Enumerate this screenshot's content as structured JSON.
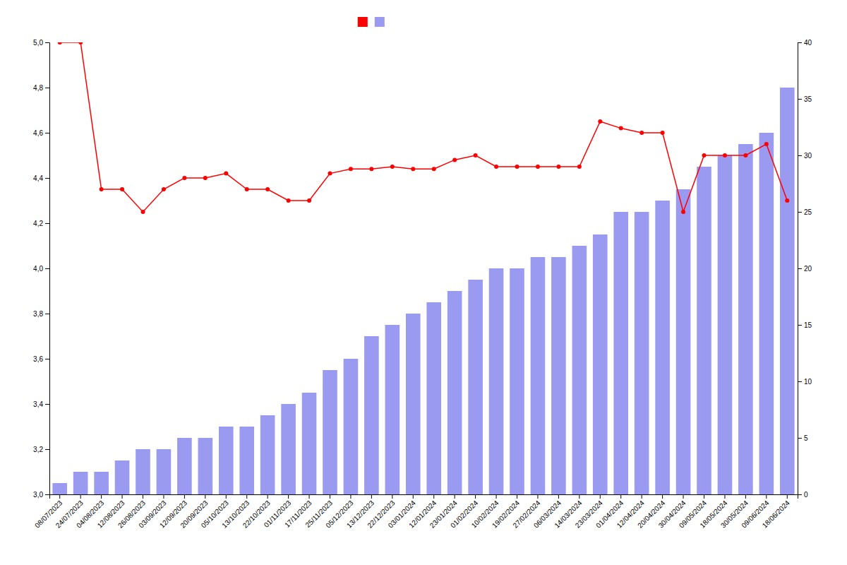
{
  "chart_data": {
    "type": "bar",
    "categories": [
      "08/07/2023",
      "24/07/2023",
      "04/08/2023",
      "12/08/2023",
      "26/08/2023",
      "03/09/2023",
      "12/09/2023",
      "20/09/2023",
      "05/10/2023",
      "13/10/2023",
      "22/10/2023",
      "01/11/2023",
      "17/11/2023",
      "25/11/2023",
      "05/12/2023",
      "13/12/2023",
      "22/12/2023",
      "03/01/2024",
      "12/01/2024",
      "23/01/2024",
      "01/02/2024",
      "10/02/2024",
      "19/02/2024",
      "27/02/2024",
      "06/03/2024",
      "14/03/2024",
      "23/03/2024",
      "01/04/2024",
      "12/04/2024",
      "20/04/2024",
      "30/04/2024",
      "09/05/2024",
      "18/05/2024",
      "30/05/2024",
      "09/06/2024",
      "18/06/2024"
    ],
    "series": [
      {
        "type": "line",
        "color": "#FF0000",
        "marker": "circle",
        "values": [
          5.0,
          5.0,
          4.35,
          4.35,
          4.25,
          4.35,
          4.4,
          4.4,
          4.42,
          4.35,
          4.35,
          4.3,
          4.3,
          4.42,
          4.44,
          4.44,
          4.45,
          4.44,
          4.44,
          4.48,
          4.5,
          4.45,
          4.45,
          4.45,
          4.45,
          4.45,
          4.65,
          4.62,
          4.6,
          4.6,
          4.25,
          4.5,
          4.5,
          4.5,
          4.55,
          4.3
        ]
      },
      {
        "type": "bar",
        "axis": "y2",
        "color": "#8888EE",
        "values": [
          1,
          2,
          2,
          3,
          4,
          4,
          5,
          5,
          6,
          6,
          7,
          8,
          9,
          11,
          12,
          14,
          15,
          16,
          17,
          18,
          19,
          20,
          20,
          21,
          21,
          22,
          23,
          25,
          25,
          26,
          27,
          29,
          30,
          31,
          32,
          36
        ]
      }
    ],
    "ylim": [
      3.0,
      5.0
    ],
    "yticks": [
      {
        "value": 3.0,
        "label": "3,0"
      },
      {
        "value": 3.2,
        "label": "3,2"
      },
      {
        "value": 3.4,
        "label": "3,4"
      },
      {
        "value": 3.6,
        "label": "3,6"
      },
      {
        "value": 3.8,
        "label": "3,8"
      },
      {
        "value": 4.0,
        "label": "4,0"
      },
      {
        "value": 4.2,
        "label": "4,2"
      },
      {
        "value": 4.4,
        "label": "4,4"
      },
      {
        "value": 4.6,
        "label": "4,6"
      },
      {
        "value": 4.8,
        "label": "4,8"
      },
      {
        "value": 5.0,
        "label": "5,0"
      }
    ],
    "y2lim": [
      0,
      40
    ],
    "y2ticks": [
      0,
      5,
      10,
      15,
      20,
      25,
      30,
      35,
      40
    ],
    "grid": false,
    "legend": "top"
  }
}
